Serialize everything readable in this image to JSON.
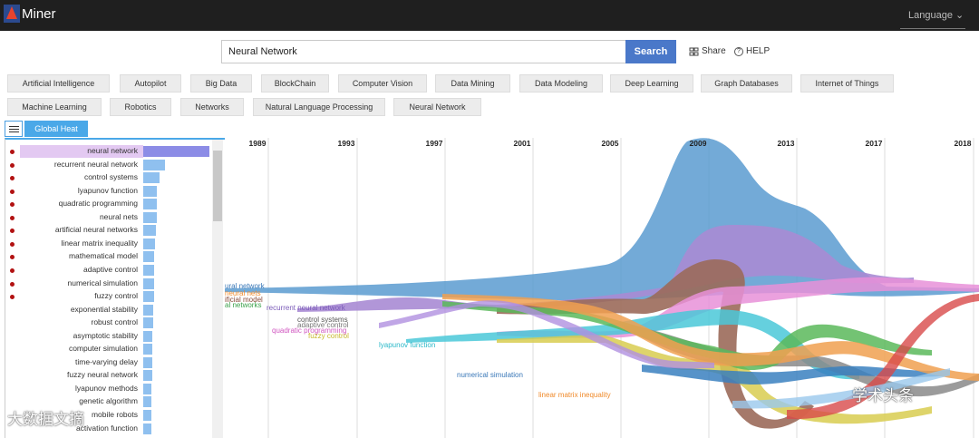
{
  "header": {
    "logo_text": "Miner",
    "language_label": "Language ⌄"
  },
  "search": {
    "value": "Neural Network",
    "button_label": "Search",
    "share_label": "Share",
    "help_label": "HELP"
  },
  "tags_row1": [
    "Artificial Intelligence",
    "Autopilot",
    "Big Data",
    "BlockChain",
    "Computer Vision",
    "Data Mining",
    "Data Modeling",
    "Deep Learning",
    "Graph Databases",
    "Internet of Things"
  ],
  "tags_row2": [
    "Machine Learning",
    "Robotics",
    "Networks",
    "Natural Language Processing",
    "Neural Network"
  ],
  "tab": {
    "label": "Global Heat"
  },
  "keywords": [
    {
      "label": "neural network",
      "bar": 1.0,
      "dot": true
    },
    {
      "label": "recurrent neural network",
      "bar": 0.33,
      "dot": true
    },
    {
      "label": "control systems",
      "bar": 0.24,
      "dot": true
    },
    {
      "label": "lyapunov function",
      "bar": 0.21,
      "dot": true
    },
    {
      "label": "quadratic programming",
      "bar": 0.21,
      "dot": true
    },
    {
      "label": "neural nets",
      "bar": 0.2,
      "dot": true
    },
    {
      "label": "artificial neural networks",
      "bar": 0.19,
      "dot": true
    },
    {
      "label": "linear matrix inequality",
      "bar": 0.18,
      "dot": true
    },
    {
      "label": "mathematical model",
      "bar": 0.17,
      "dot": true
    },
    {
      "label": "adaptive control",
      "bar": 0.17,
      "dot": true
    },
    {
      "label": "numerical simulation",
      "bar": 0.16,
      "dot": true
    },
    {
      "label": "fuzzy control",
      "bar": 0.16,
      "dot": true
    },
    {
      "label": "exponential stability",
      "bar": 0.15,
      "dot": false
    },
    {
      "label": "robust control",
      "bar": 0.15,
      "dot": false
    },
    {
      "label": "asymptotic stability",
      "bar": 0.14,
      "dot": false
    },
    {
      "label": "computer simulation",
      "bar": 0.14,
      "dot": false
    },
    {
      "label": "time-varying delay",
      "bar": 0.14,
      "dot": false
    },
    {
      "label": "fuzzy neural network",
      "bar": 0.14,
      "dot": false
    },
    {
      "label": "lyapunov methods",
      "bar": 0.13,
      "dot": false
    },
    {
      "label": "genetic algorithm",
      "bar": 0.13,
      "dot": false
    },
    {
      "label": "mobile robots",
      "bar": 0.13,
      "dot": false
    },
    {
      "label": "activation function",
      "bar": 0.12,
      "dot": false
    }
  ],
  "chart_data": {
    "type": "area",
    "years": [
      "1989",
      "1993",
      "1997",
      "2001",
      "2005",
      "2009",
      "2013",
      "2017",
      "2018"
    ],
    "stream_labels": [
      {
        "text": "ural network",
        "color": "#3a78b8"
      },
      {
        "text": "neural nets",
        "color": "#f08a2a"
      },
      {
        "text": "ificial model",
        "color": "#8a4a3a"
      },
      {
        "text": "al networks",
        "color": "#3aa04a"
      },
      {
        "text": "recurrent neural network",
        "color": "#7a5ab8"
      },
      {
        "text": "control systems",
        "color": "#555555"
      },
      {
        "text": "adaptive control",
        "color": "#777777"
      },
      {
        "text": "quadratic programming",
        "color": "#d055c0"
      },
      {
        "text": "fuzzy control",
        "color": "#c8b82a"
      },
      {
        "text": "lyapunov function",
        "color": "#2ab8c8"
      },
      {
        "text": "numerical simulation",
        "color": "#3a78b8"
      },
      {
        "text": "linear matrix inequality",
        "color": "#f08a2a"
      }
    ]
  },
  "watermarks": {
    "left": "大数据文摘",
    "right": "学术头条"
  }
}
